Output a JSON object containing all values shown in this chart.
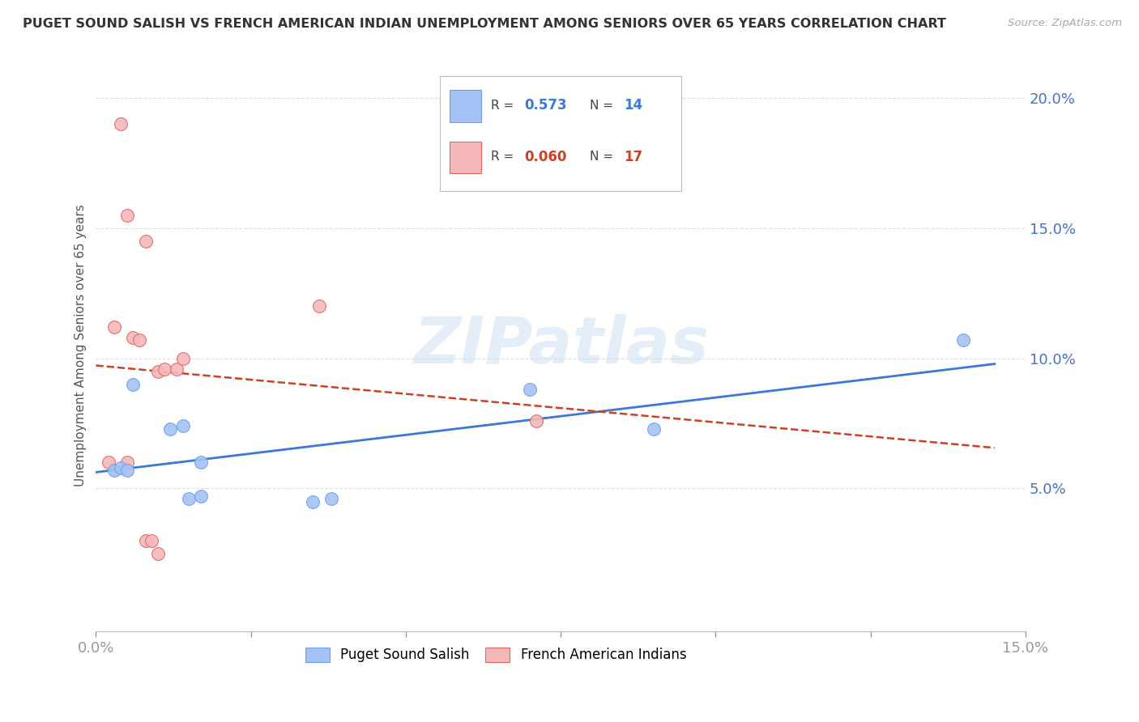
{
  "title": "PUGET SOUND SALISH VS FRENCH AMERICAN INDIAN UNEMPLOYMENT AMONG SENIORS OVER 65 YEARS CORRELATION CHART",
  "source": "Source: ZipAtlas.com",
  "ylabel": "Unemployment Among Seniors over 65 years",
  "xlim": [
    0.0,
    0.15
  ],
  "ylim": [
    -0.005,
    0.215
  ],
  "yticks": [
    0.05,
    0.1,
    0.15,
    0.2
  ],
  "ytick_labels": [
    "5.0%",
    "10.0%",
    "15.0%",
    "20.0%"
  ],
  "xticks": [
    0.0,
    0.025,
    0.05,
    0.075,
    0.1,
    0.125,
    0.15
  ],
  "blue_R": "0.573",
  "blue_N": "14",
  "pink_R": "0.060",
  "pink_N": "17",
  "blue_color": "#a4c2f4",
  "pink_color": "#f4b8b8",
  "blue_edge_color": "#6d9eeb",
  "pink_edge_color": "#e06666",
  "blue_line_color": "#3c78d8",
  "pink_line_color": "#cc4125",
  "watermark": "ZIPatlas",
  "blue_x": [
    0.003,
    0.004,
    0.005,
    0.006,
    0.012,
    0.014,
    0.015,
    0.017,
    0.017,
    0.035,
    0.038,
    0.07,
    0.09,
    0.14
  ],
  "blue_y": [
    0.057,
    0.058,
    0.057,
    0.09,
    0.073,
    0.074,
    0.046,
    0.047,
    0.06,
    0.045,
    0.046,
    0.088,
    0.073,
    0.107
  ],
  "pink_x": [
    0.002,
    0.003,
    0.004,
    0.005,
    0.005,
    0.006,
    0.007,
    0.008,
    0.01,
    0.011,
    0.013,
    0.014,
    0.036,
    0.071,
    0.008,
    0.009,
    0.01
  ],
  "pink_y": [
    0.06,
    0.112,
    0.19,
    0.155,
    0.06,
    0.108,
    0.107,
    0.145,
    0.095,
    0.096,
    0.096,
    0.1,
    0.12,
    0.076,
    0.03,
    0.03,
    0.025
  ],
  "background_color": "#ffffff",
  "grid_color": "#dddddd",
  "title_color": "#333333",
  "tick_color": "#4472c4",
  "axis_label_color": "#555555"
}
